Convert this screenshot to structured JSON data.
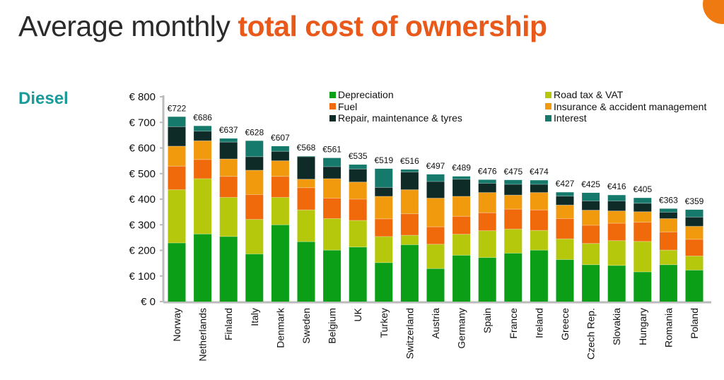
{
  "title": {
    "prefix": "Average monthly ",
    "highlight": "total cost of ownership"
  },
  "subtitle": "Diesel",
  "chart_data": {
    "type": "bar",
    "stacked": true,
    "title": "Average monthly total cost of ownership",
    "subtitle": "Diesel",
    "xlabel": "",
    "ylabel": "",
    "ylim": [
      0,
      800
    ],
    "yticks": [
      0,
      100,
      200,
      300,
      400,
      500,
      600,
      700,
      800
    ],
    "ytick_labels": [
      "€ 0",
      "€ 100",
      "€ 200",
      "€ 300",
      "€ 400",
      "€ 500",
      "€ 600",
      "€ 700",
      "€ 800"
    ],
    "grid": false,
    "legend_position": "top-right",
    "categories": [
      "Norway",
      "Netherlands",
      "Finland",
      "Italy",
      "Denmark",
      "Sweden",
      "Belgium",
      "UK",
      "Turkey",
      "Switzerland",
      "Austria",
      "Germany",
      "Spain",
      "France",
      "Ireland",
      "Greece",
      "Czech Rep.",
      "Slovakia",
      "Hungary",
      "Romania",
      "Poland"
    ],
    "totals": [
      722,
      686,
      637,
      628,
      607,
      568,
      561,
      535,
      519,
      516,
      497,
      489,
      476,
      475,
      474,
      427,
      425,
      416,
      405,
      363,
      359
    ],
    "total_labels": [
      "€722",
      "€686",
      "€637",
      "€628",
      "€607",
      "€568",
      "€561",
      "€535",
      "€519",
      "€516",
      "€497",
      "€489",
      "€476",
      "€475",
      "€474",
      "€427",
      "€425",
      "€416",
      "€405",
      "€363",
      "€359"
    ],
    "series": [
      {
        "name": "Depreciation",
        "color": "#0a9f16",
        "values": [
          229,
          264,
          254,
          186,
          300,
          234,
          201,
          213,
          152,
          222,
          129,
          181,
          172,
          189,
          201,
          164,
          144,
          141,
          116,
          144,
          123
        ]
      },
      {
        "name": "Road tax & VAT",
        "color": "#b5c80c",
        "values": [
          208,
          216,
          153,
          135,
          107,
          124,
          123,
          104,
          102,
          37,
          95,
          82,
          105,
          94,
          77,
          81,
          83,
          97,
          119,
          57,
          55
        ]
      },
      {
        "name": "Fuel",
        "color": "#f06a0c",
        "values": [
          92,
          75,
          82,
          97,
          82,
          87,
          80,
          83,
          69,
          84,
          68,
          70,
          70,
          78,
          80,
          79,
          71,
          68,
          75,
          71,
          65
        ]
      },
      {
        "name": "Insurance & accident management",
        "color": "#f29a0e",
        "values": [
          78,
          73,
          68,
          95,
          61,
          33,
          76,
          67,
          88,
          94,
          112,
          78,
          79,
          55,
          68,
          53,
          59,
          48,
          41,
          52,
          51
        ]
      },
      {
        "name": "Repair, maintenance & tyres",
        "color": "#0e2b28",
        "values": [
          76,
          38,
          66,
          53,
          37,
          88,
          47,
          51,
          35,
          69,
          65,
          67,
          36,
          42,
          32,
          35,
          36,
          39,
          33,
          25,
          36
        ]
      },
      {
        "name": "Interest",
        "color": "#157a6c",
        "values": [
          39,
          20,
          14,
          62,
          20,
          2,
          34,
          17,
          73,
          10,
          28,
          11,
          14,
          17,
          16,
          15,
          32,
          23,
          21,
          14,
          29
        ]
      }
    ]
  },
  "legend": {
    "left": [
      "Depreciation",
      "Fuel",
      "Repair, maintenance & tyres"
    ],
    "right": [
      "Road tax & VAT",
      "Insurance & accident management",
      "Interest"
    ]
  }
}
